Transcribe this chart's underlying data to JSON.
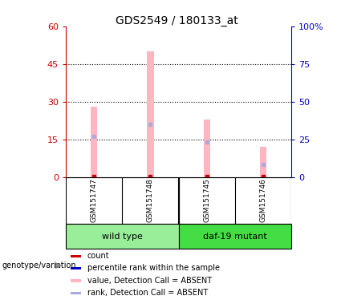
{
  "title": "GDS2549 / 180133_at",
  "samples": [
    "GSM151747",
    "GSM151748",
    "GSM151745",
    "GSM151746"
  ],
  "pink_bars": [
    28,
    50,
    23,
    12
  ],
  "blue_marks": [
    16,
    21,
    14,
    5
  ],
  "ylim_left": [
    0,
    60
  ],
  "ylim_right": [
    0,
    100
  ],
  "yticks_left": [
    0,
    15,
    30,
    45,
    60
  ],
  "yticks_right": [
    0,
    25,
    50,
    75,
    100
  ],
  "ytick_labels_right": [
    "0",
    "25",
    "50",
    "75",
    "100%"
  ],
  "left_axis_color": "#CC0000",
  "right_axis_color": "#0000CC",
  "bar_pink": "#FFB6C1",
  "bar_blue": "#AAAADD",
  "bar_red": "#CC0000",
  "bar_darkblue": "#0000CC",
  "bg_color": "#FFFFFF",
  "sample_box_color": "#CCCCCC",
  "wt_color": "#99EE99",
  "daf_color": "#44DD44",
  "legend_items": [
    {
      "color": "#CC0000",
      "label": "count"
    },
    {
      "color": "#0000CC",
      "label": "percentile rank within the sample"
    },
    {
      "color": "#FFB6C1",
      "label": "value, Detection Call = ABSENT"
    },
    {
      "color": "#AAAADD",
      "label": "rank, Detection Call = ABSENT"
    }
  ],
  "genotype_label": "genotype/variation"
}
